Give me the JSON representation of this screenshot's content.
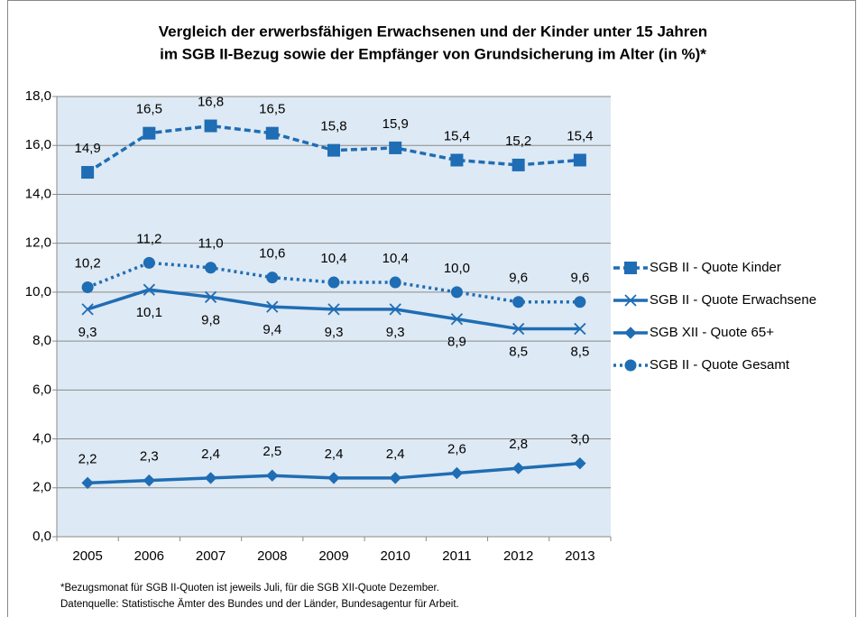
{
  "chart_data": {
    "type": "line",
    "title": [
      "Vergleich der erwerbsfähigen Erwachsenen und der Kinder unter 15 Jahren",
      "im SGB II-Bezug sowie der Empfänger von Grundsicherung im Alter (in %)*"
    ],
    "categories": [
      "2005",
      "2006",
      "2007",
      "2008",
      "2009",
      "2010",
      "2011",
      "2012",
      "2013"
    ],
    "series": [
      {
        "name": "SGB II - Quote Kinder",
        "color": "#1f6db4",
        "dash": "dashed",
        "marker": "square",
        "label_side": "above",
        "values": [
          14.9,
          16.5,
          16.8,
          16.5,
          15.8,
          15.9,
          15.4,
          15.2,
          15.4
        ],
        "value_labels": [
          "14,9",
          "16,5",
          "16,8",
          "16,5",
          "15,8",
          "15,9",
          "15,4",
          "15,2",
          "15,4"
        ]
      },
      {
        "name": "SGB II - Quote Erwachsene",
        "color": "#1f6db4",
        "dash": "solid",
        "marker": "x",
        "label_side": "below",
        "values": [
          9.3,
          10.1,
          9.8,
          9.4,
          9.3,
          9.3,
          8.9,
          8.5,
          8.5
        ],
        "value_labels": [
          "9,3",
          "10,1",
          "9,8",
          "9,4",
          "9,3",
          "9,3",
          "8,9",
          "8,5",
          "8,5"
        ]
      },
      {
        "name": "SGB XII - Quote 65+",
        "color": "#1f6db4",
        "dash": "solid",
        "marker": "diamond",
        "label_side": "above",
        "values": [
          2.2,
          2.3,
          2.4,
          2.5,
          2.4,
          2.4,
          2.6,
          2.8,
          3.0
        ],
        "value_labels": [
          "2,2",
          "2,3",
          "2,4",
          "2,5",
          "2,4",
          "2,4",
          "2,6",
          "2,8",
          "3,0"
        ]
      },
      {
        "name": "SGB II - Quote Gesamt",
        "color": "#1f6db4",
        "dash": "dotted",
        "marker": "circle",
        "label_side": "above",
        "values": [
          10.2,
          11.2,
          11.0,
          10.6,
          10.4,
          10.4,
          10.0,
          9.6,
          9.6
        ],
        "value_labels": [
          "10,2",
          "11,2",
          "11,0",
          "10,6",
          "10,4",
          "10,4",
          "10,0",
          "9,6",
          "9,6"
        ]
      }
    ],
    "ylim": [
      0,
      18
    ],
    "yticks": [
      {
        "value": 0,
        "label": "0,0"
      },
      {
        "value": 2,
        "label": "2,0"
      },
      {
        "value": 4,
        "label": "4,0"
      },
      {
        "value": 6,
        "label": "6,0"
      },
      {
        "value": 8,
        "label": "8,0"
      },
      {
        "value": 10,
        "label": "10,0"
      },
      {
        "value": 12,
        "label": "12,0"
      },
      {
        "value": 14,
        "label": "14,0"
      },
      {
        "value": 16,
        "label": "16,0"
      },
      {
        "value": 18,
        "label": "18,0"
      }
    ],
    "grid": true,
    "legend": "right",
    "footnotes": [
      "*Bezugsmonat für SGB II-Quoten ist jeweils Juli, für die SGB XII-Quote Dezember.",
      "Datenquelle: Statistische Ämter des Bundes und der Länder, Bundesagentur für Arbeit."
    ]
  }
}
